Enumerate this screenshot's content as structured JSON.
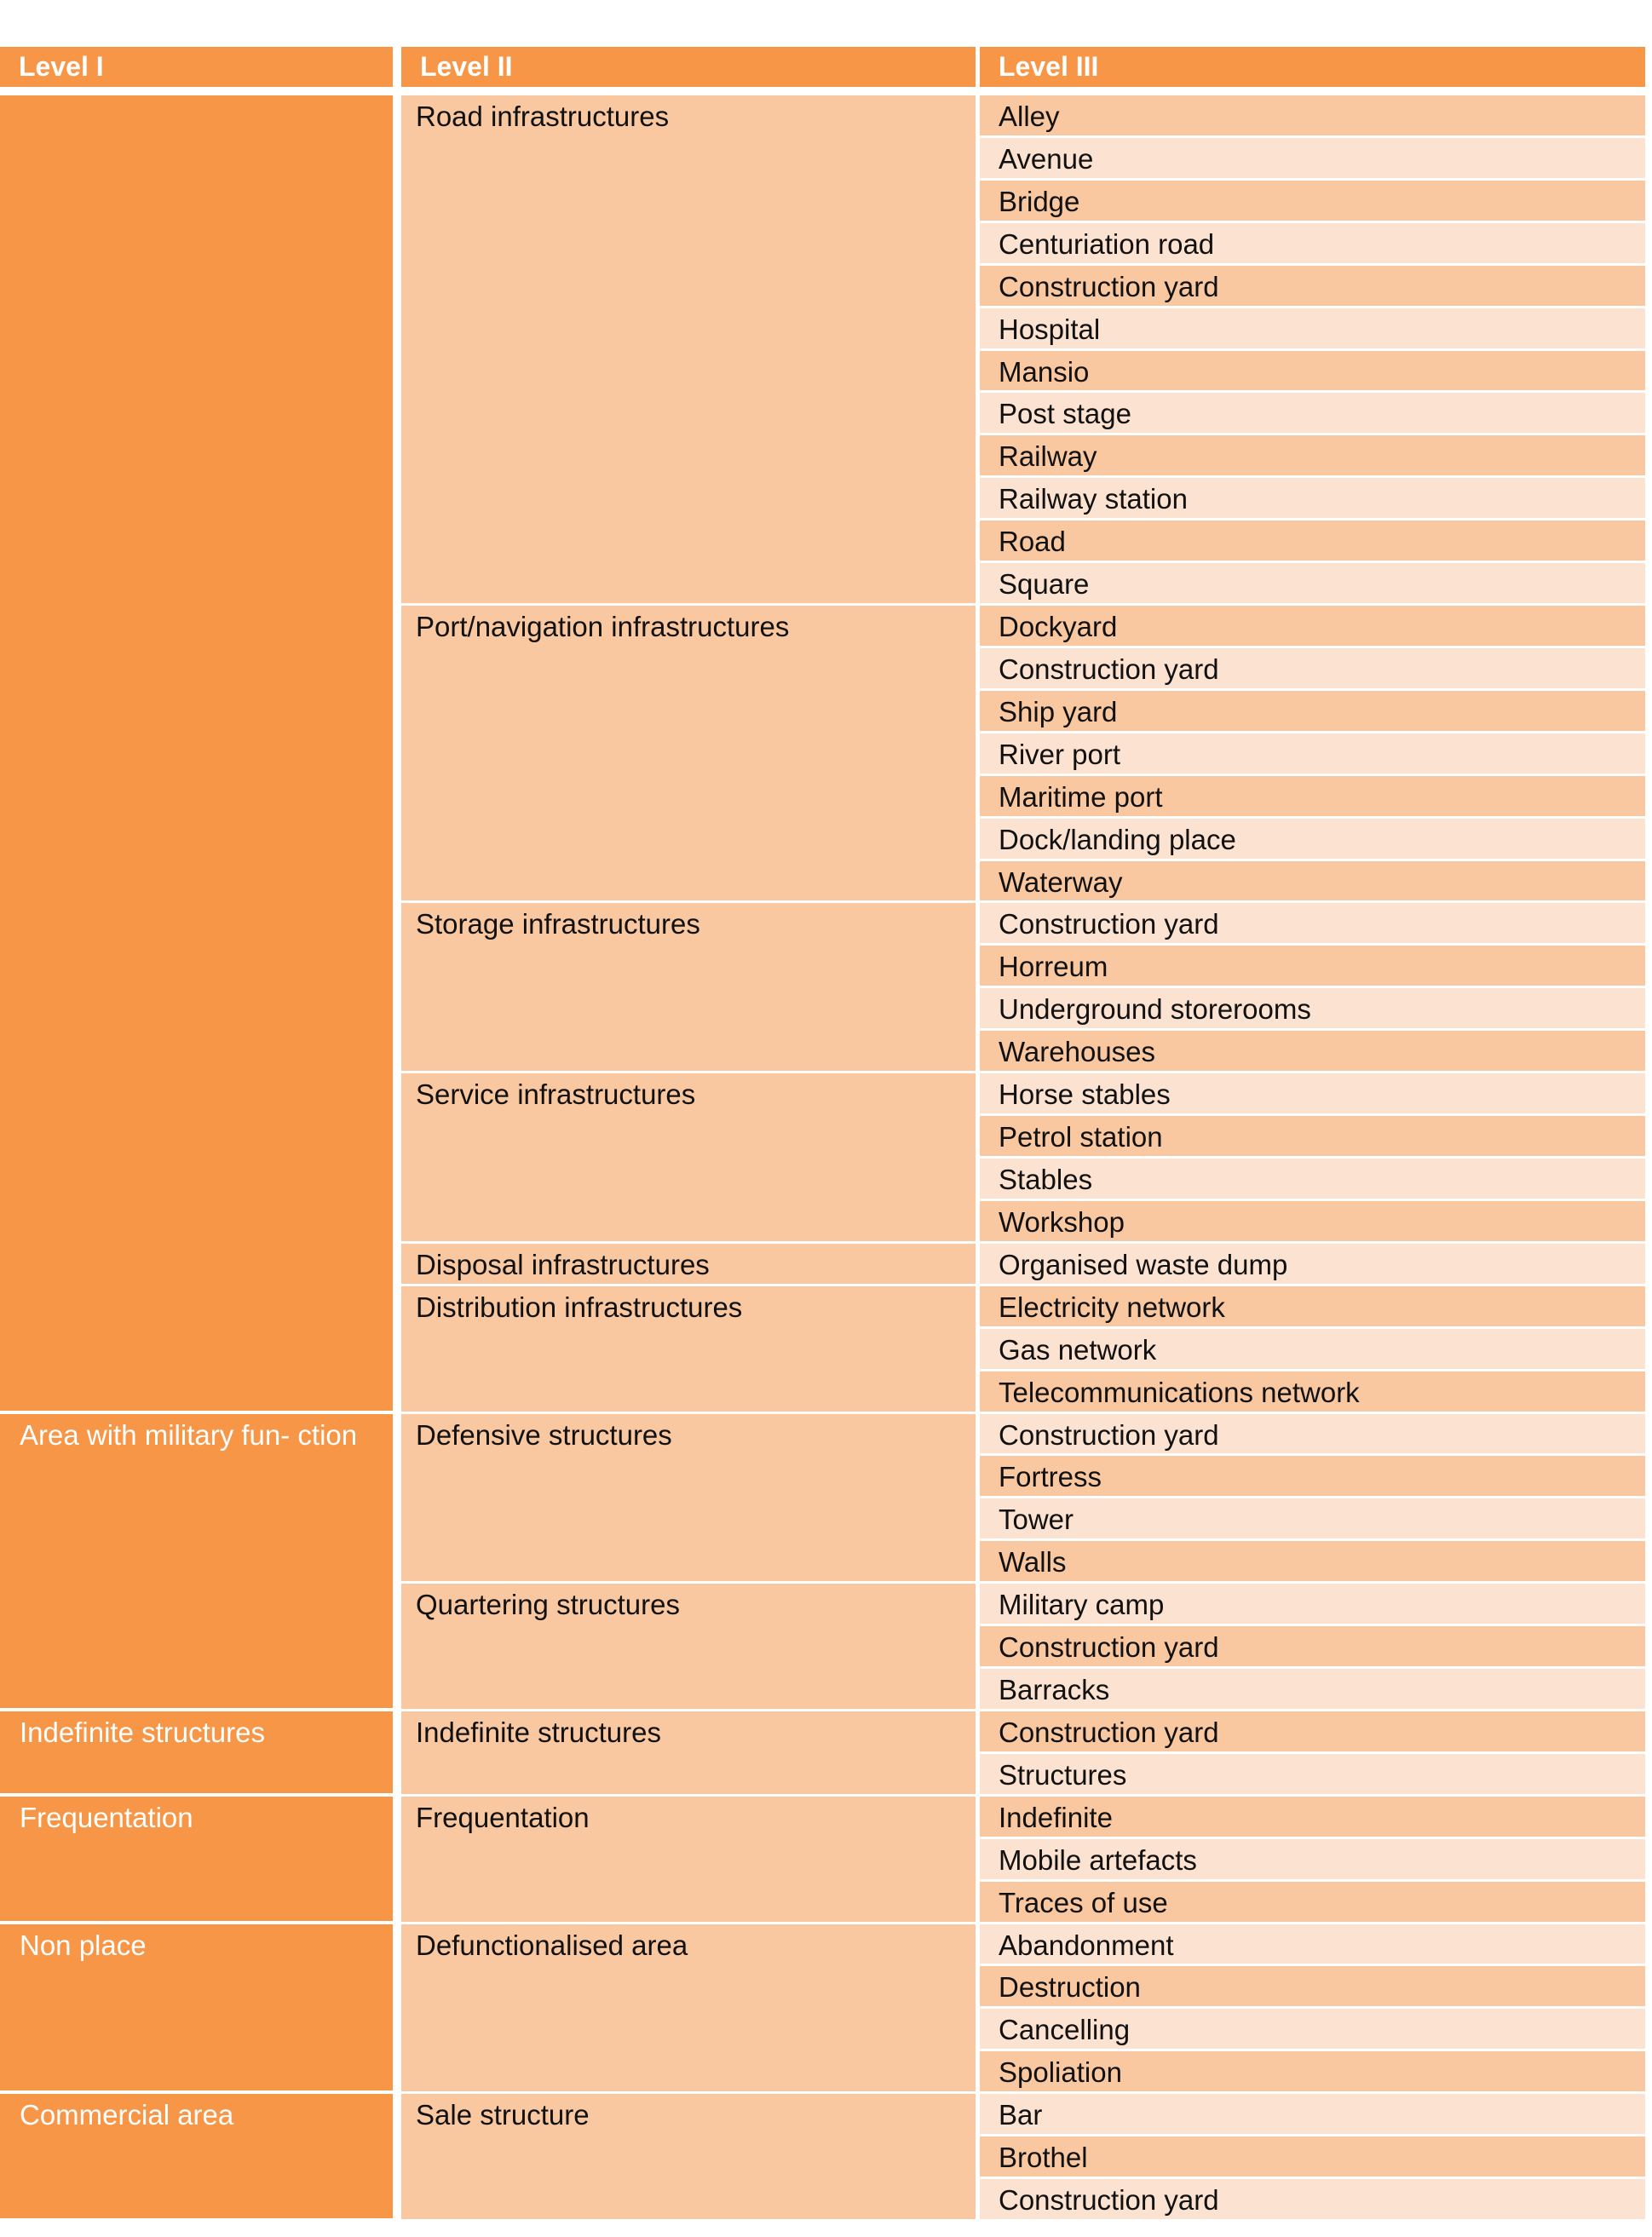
{
  "header": {
    "level1": "Level I",
    "level2": "Level II",
    "level3": "Level III"
  },
  "colors": {
    "header": "#f79646",
    "level1": "#f79646",
    "level2": "#f9c8a1",
    "row_dark": "#f9c8a1",
    "row_light": "#fce2d0"
  },
  "groups": [
    {
      "level1": "",
      "subgroups": [
        {
          "level2": "Road infrastructures",
          "items": [
            "Alley",
            "Avenue",
            "Bridge",
            "Centuriation road",
            "Construction yard",
            "Hospital",
            "Mansio",
            "Post stage",
            "Railway",
            "Railway station",
            "Road",
            "Square"
          ]
        },
        {
          "level2": "Port/navigation infrastructures",
          "items": [
            "Dockyard",
            "Construction yard",
            "Ship yard",
            "River port",
            "Maritime port",
            "Dock/landing place",
            "Waterway"
          ]
        },
        {
          "level2": "Storage infrastructures",
          "items": [
            "Construction yard",
            "Horreum",
            "Underground storerooms",
            "Warehouses"
          ]
        },
        {
          "level2": "Service infrastructures",
          "items": [
            "Horse stables",
            "Petrol station",
            "Stables",
            "Workshop"
          ]
        },
        {
          "level2": "Disposal infrastructures",
          "items": [
            "Organised waste dump"
          ]
        },
        {
          "level2": "Distribution infrastructures",
          "items": [
            "Electricity network",
            "Gas network",
            "Telecommunications network"
          ]
        }
      ]
    },
    {
      "level1": "Area with military fun- ction",
      "subgroups": [
        {
          "level2": "Defensive structures",
          "items": [
            "Construction yard",
            "Fortress",
            "Tower",
            "Walls"
          ]
        },
        {
          "level2": "Quartering structures",
          "items": [
            "Military camp",
            "Construction yard",
            "Barracks"
          ]
        }
      ]
    },
    {
      "level1": "Indefinite structures",
      "subgroups": [
        {
          "level2": "Indefinite structures",
          "items": [
            "Construction yard",
            "Structures"
          ]
        }
      ]
    },
    {
      "level1": "Frequentation",
      "subgroups": [
        {
          "level2": "Frequentation",
          "items": [
            "Indefinite",
            "Mobile artefacts",
            "Traces of use"
          ]
        }
      ]
    },
    {
      "level1": "Non place",
      "subgroups": [
        {
          "level2": "Defunctionalised area",
          "items": [
            "Abandonment",
            "Destruction",
            "Cancelling",
            "Spoliation"
          ]
        }
      ]
    },
    {
      "level1": "Commercial area",
      "subgroups": [
        {
          "level2": "Sale structure",
          "items": [
            "Bar",
            "Brothel",
            "Construction yard"
          ]
        }
      ]
    }
  ]
}
